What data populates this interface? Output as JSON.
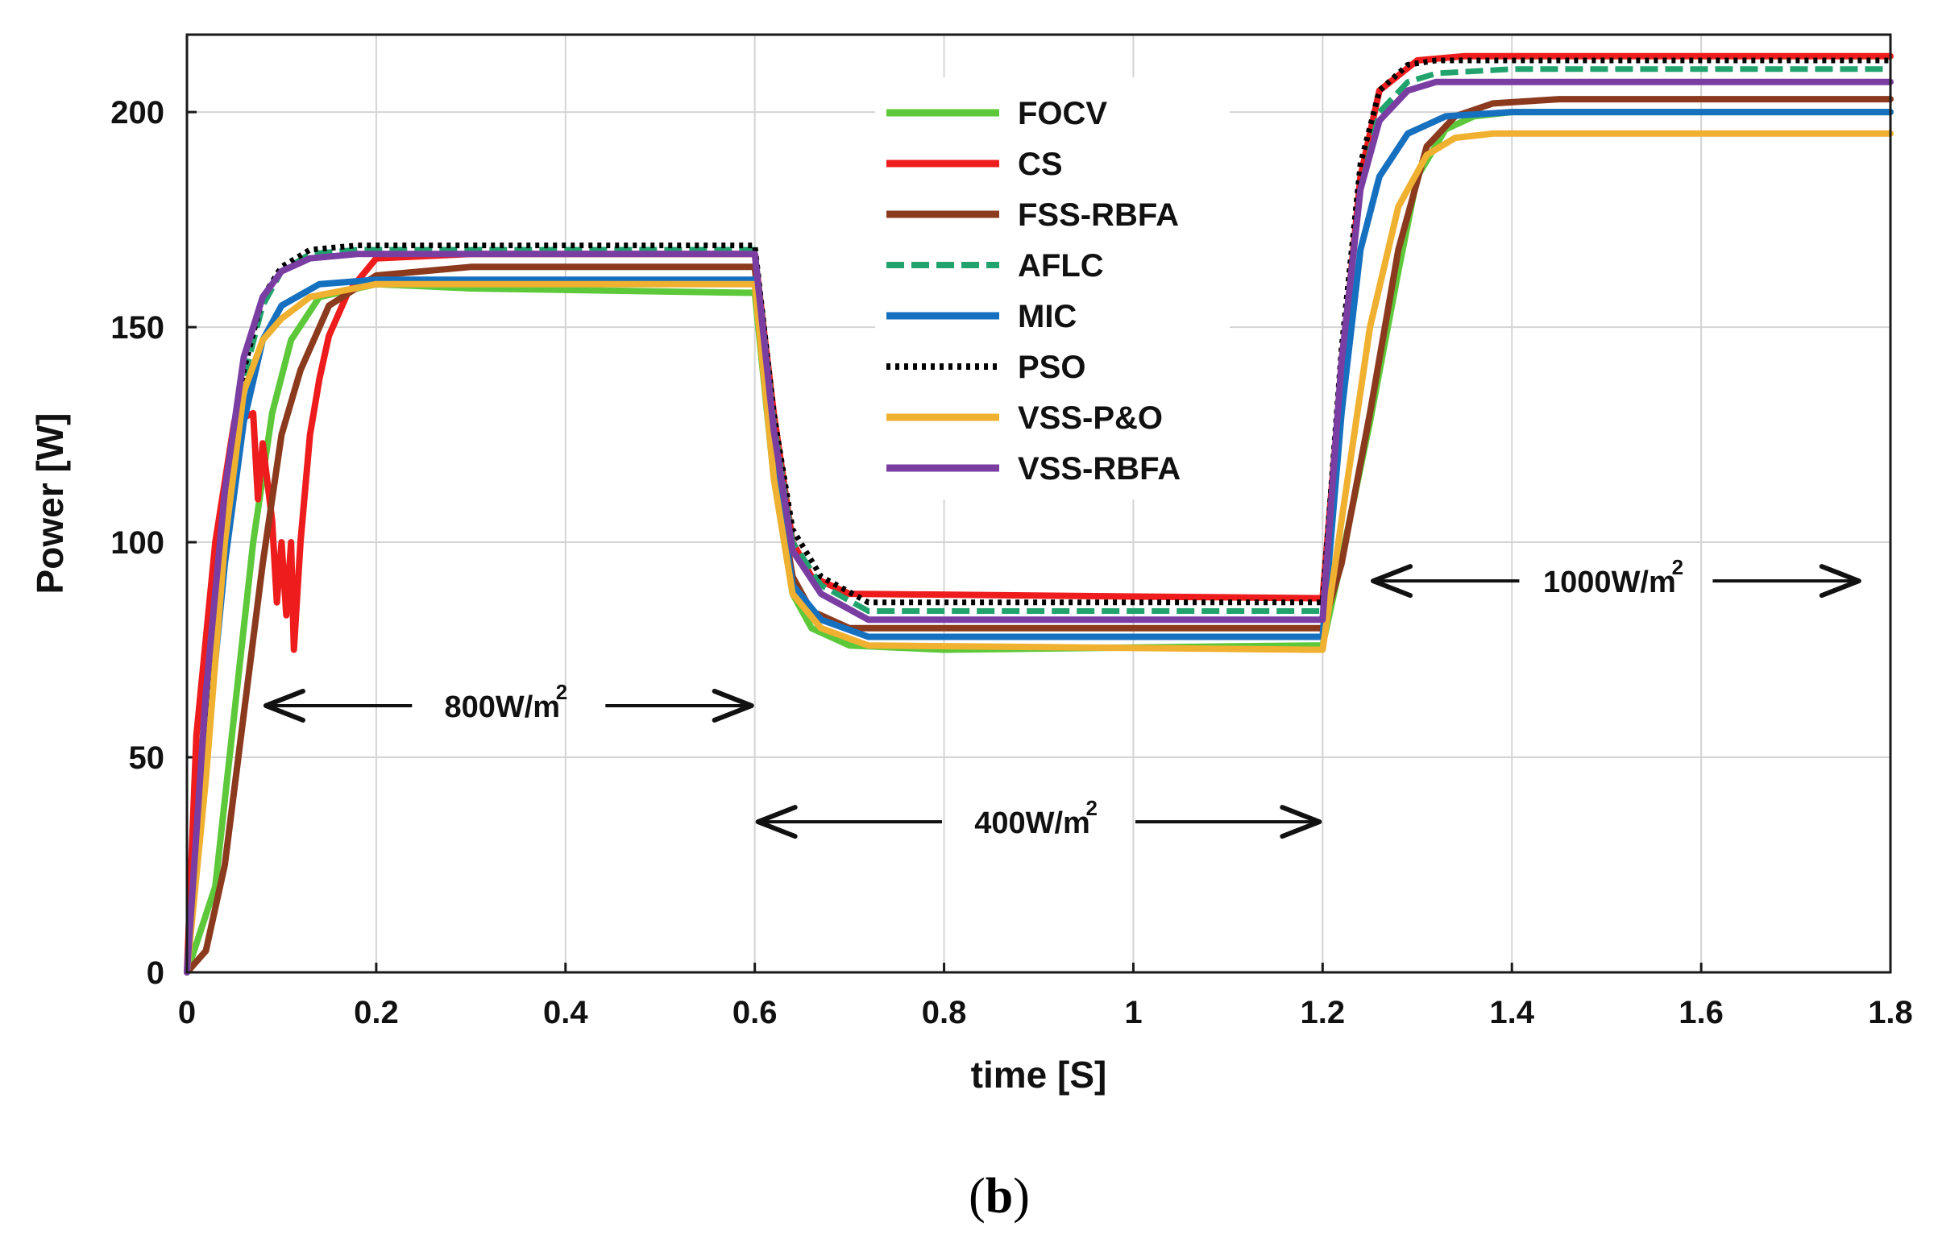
{
  "chart_data": {
    "type": "line",
    "xlabel": "time [S]",
    "ylabel": "Power [W]",
    "xlim": [
      0,
      1.8
    ],
    "ylim": [
      0,
      218
    ],
    "xticks": [
      "0",
      "0.2",
      "0.4",
      "0.6",
      "0.8",
      "1",
      "1.2",
      "1.4",
      "1.6",
      "1.8"
    ],
    "yticks": [
      "0",
      "50",
      "100",
      "150",
      "200"
    ],
    "grid": true,
    "legend": "top-center",
    "series": [
      {
        "name": "FOCV",
        "color": "#5dc93a",
        "dash": "solid",
        "x": [
          0,
          0.03,
          0.05,
          0.07,
          0.09,
          0.11,
          0.14,
          0.2,
          0.3,
          0.59,
          0.6,
          0.62,
          0.64,
          0.66,
          0.7,
          0.8,
          1.19,
          1.2,
          1.22,
          1.25,
          1.28,
          1.3,
          1.33,
          1.36,
          1.4,
          1.8
        ],
        "y": [
          0,
          20,
          60,
          100,
          130,
          147,
          157,
          160,
          159,
          158,
          158,
          115,
          88,
          80,
          76,
          75,
          76,
          76,
          96,
          128,
          163,
          185,
          196,
          199,
          200,
          200
        ]
      },
      {
        "name": "CS",
        "color": "#ee1c1c",
        "dash": "solid",
        "x": [
          0,
          0.01,
          0.03,
          0.05,
          0.07,
          0.075,
          0.08,
          0.09,
          0.095,
          0.1,
          0.105,
          0.11,
          0.113,
          0.12,
          0.13,
          0.14,
          0.15,
          0.17,
          0.2,
          0.3,
          0.59,
          0.6,
          0.62,
          0.64,
          0.66,
          0.7,
          1.19,
          1.2,
          1.22,
          1.24,
          1.26,
          1.3,
          1.35,
          1.4,
          1.8
        ],
        "y": [
          0,
          55,
          100,
          128,
          130,
          110,
          123,
          105,
          86,
          100,
          83,
          100,
          75,
          100,
          125,
          138,
          148,
          158,
          166,
          167,
          167,
          167,
          130,
          100,
          92,
          88,
          87,
          87,
          140,
          185,
          205,
          212,
          213,
          213,
          213
        ]
      },
      {
        "name": "FSS-RBFA",
        "color": "#8b3a1e",
        "dash": "solid",
        "x": [
          0,
          0.02,
          0.04,
          0.06,
          0.08,
          0.1,
          0.12,
          0.15,
          0.2,
          0.3,
          0.59,
          0.6,
          0.62,
          0.64,
          0.66,
          0.7,
          1.19,
          1.2,
          1.22,
          1.25,
          1.28,
          1.31,
          1.34,
          1.38,
          1.45,
          1.8
        ],
        "y": [
          0,
          5,
          25,
          60,
          95,
          125,
          140,
          155,
          162,
          164,
          164,
          164,
          118,
          92,
          84,
          80,
          80,
          80,
          95,
          130,
          168,
          192,
          199,
          202,
          203,
          203
        ]
      },
      {
        "name": "AFLC",
        "color": "#22a36e",
        "dash": "dash",
        "x": [
          0,
          0.02,
          0.04,
          0.06,
          0.08,
          0.1,
          0.13,
          0.18,
          0.3,
          0.59,
          0.6,
          0.62,
          0.64,
          0.67,
          0.72,
          1.19,
          1.2,
          1.22,
          1.24,
          1.26,
          1.29,
          1.32,
          1.4,
          1.8
        ],
        "y": [
          0,
          60,
          105,
          138,
          155,
          163,
          167,
          168,
          168,
          168,
          168,
          128,
          100,
          90,
          84,
          84,
          84,
          140,
          182,
          200,
          207,
          209,
          210,
          210
        ]
      },
      {
        "name": "MIC",
        "color": "#1670c0",
        "dash": "solid",
        "x": [
          0,
          0.02,
          0.04,
          0.06,
          0.08,
          0.1,
          0.14,
          0.2,
          0.3,
          0.59,
          0.6,
          0.62,
          0.64,
          0.67,
          0.72,
          1.19,
          1.2,
          1.22,
          1.24,
          1.26,
          1.29,
          1.33,
          1.4,
          1.8
        ],
        "y": [
          0,
          50,
          95,
          128,
          147,
          155,
          160,
          161,
          161,
          161,
          161,
          118,
          90,
          82,
          78,
          78,
          78,
          130,
          168,
          185,
          195,
          199,
          200,
          200
        ]
      },
      {
        "name": "PSO",
        "color": "#000000",
        "dash": "dot",
        "x": [
          0,
          0.02,
          0.04,
          0.06,
          0.08,
          0.1,
          0.13,
          0.18,
          0.3,
          0.59,
          0.6,
          0.62,
          0.64,
          0.67,
          0.72,
          1.19,
          1.2,
          1.22,
          1.24,
          1.26,
          1.29,
          1.32,
          1.4,
          1.8
        ],
        "y": [
          0,
          62,
          108,
          140,
          157,
          164,
          168,
          169,
          169,
          169,
          169,
          130,
          103,
          92,
          86,
          86,
          86,
          145,
          188,
          205,
          211,
          212,
          212,
          212
        ]
      },
      {
        "name": "VSS-P&O",
        "color": "#f0b030",
        "dash": "solid",
        "x": [
          0,
          0.02,
          0.04,
          0.06,
          0.08,
          0.1,
          0.13,
          0.2,
          0.3,
          0.59,
          0.6,
          0.62,
          0.64,
          0.67,
          0.72,
          1.19,
          1.2,
          1.22,
          1.25,
          1.28,
          1.31,
          1.34,
          1.38,
          1.8
        ],
        "y": [
          0,
          45,
          100,
          135,
          147,
          152,
          157,
          160,
          160,
          160,
          160,
          115,
          88,
          80,
          76,
          75,
          75,
          105,
          150,
          178,
          190,
          194,
          195,
          195
        ]
      },
      {
        "name": "VSS-RBFA",
        "color": "#7a3ea3",
        "dash": "solid",
        "x": [
          0,
          0.02,
          0.04,
          0.06,
          0.08,
          0.1,
          0.13,
          0.18,
          0.3,
          0.59,
          0.6,
          0.62,
          0.64,
          0.67,
          0.72,
          1.19,
          1.2,
          1.22,
          1.24,
          1.26,
          1.29,
          1.32,
          1.4,
          1.8
        ],
        "y": [
          0,
          65,
          112,
          143,
          157,
          163,
          166,
          167,
          167,
          167,
          167,
          126,
          98,
          88,
          82,
          82,
          82,
          142,
          182,
          198,
          205,
          207,
          207,
          207
        ]
      }
    ],
    "annotations": [
      {
        "text": "800W/m",
        "sup": "2",
        "x_from": 0.08,
        "x_to": 0.6,
        "y": 62
      },
      {
        "text": "400W/m",
        "sup": "2",
        "x_from": 0.6,
        "x_to": 1.2,
        "y": 35
      },
      {
        "text": "1000W/m",
        "sup": "2",
        "x_from": 1.25,
        "x_to": 1.77,
        "y": 91
      }
    ]
  },
  "caption": "(b)"
}
